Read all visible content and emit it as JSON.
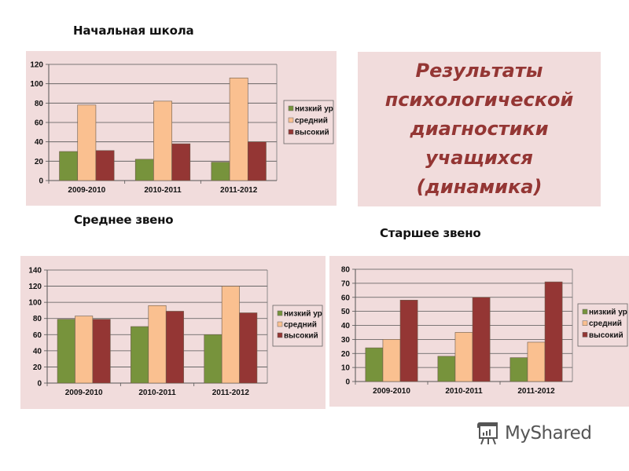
{
  "headings": {
    "primary": "Начальная школа",
    "middle": "Среднее звено",
    "senior": "Старшее звено"
  },
  "title_panel": {
    "lines": [
      "Результаты",
      "психологической",
      "диагностики",
      "учащихся",
      "(динамика)"
    ]
  },
  "watermark": {
    "text": "MyShared"
  },
  "colors": {
    "low": "#77933C",
    "mid": "#FAC090",
    "high": "#943634",
    "panel_bg": "#F1DCDC",
    "title_text": "#943634"
  },
  "chart_data": [
    {
      "type": "bar",
      "title": "Начальная школа",
      "categories": [
        "2009-2010",
        "2010-2011",
        "2011-2012"
      ],
      "series": [
        {
          "name": "низкий ур",
          "values": [
            30,
            22,
            19
          ]
        },
        {
          "name": "средний",
          "values": [
            78,
            82,
            106
          ]
        },
        {
          "name": "высокий",
          "values": [
            31,
            38,
            40
          ]
        }
      ],
      "yticks": [
        0,
        20,
        40,
        60,
        80,
        100,
        120
      ],
      "ylim": [
        0,
        120
      ],
      "xlabel": "",
      "ylabel": "",
      "grid": true,
      "legend_position": "right"
    },
    {
      "type": "bar",
      "title": "Среднее звено",
      "categories": [
        "2009-2010",
        "2010-2011",
        "2011-2012"
      ],
      "series": [
        {
          "name": "низкий ур",
          "values": [
            79,
            70,
            60
          ]
        },
        {
          "name": "средний",
          "values": [
            83,
            96,
            120
          ]
        },
        {
          "name": "высокий",
          "values": [
            79,
            89,
            87
          ]
        }
      ],
      "yticks": [
        0,
        20,
        40,
        60,
        80,
        100,
        120,
        140
      ],
      "ylim": [
        0,
        140
      ],
      "xlabel": "",
      "ylabel": "",
      "grid": true,
      "legend_position": "right"
    },
    {
      "type": "bar",
      "title": "Старшее звено",
      "categories": [
        "2009-2010",
        "2010-2011",
        "2011-2012"
      ],
      "series": [
        {
          "name": "низкий ур",
          "values": [
            24,
            18,
            17
          ]
        },
        {
          "name": "средний",
          "values": [
            30,
            35,
            28
          ]
        },
        {
          "name": "высокий",
          "values": [
            58,
            60,
            71
          ]
        }
      ],
      "yticks": [
        0,
        10,
        20,
        30,
        40,
        50,
        60,
        70,
        80
      ],
      "ylim": [
        0,
        80
      ],
      "xlabel": "",
      "ylabel": "",
      "grid": true,
      "legend_position": "right"
    }
  ]
}
